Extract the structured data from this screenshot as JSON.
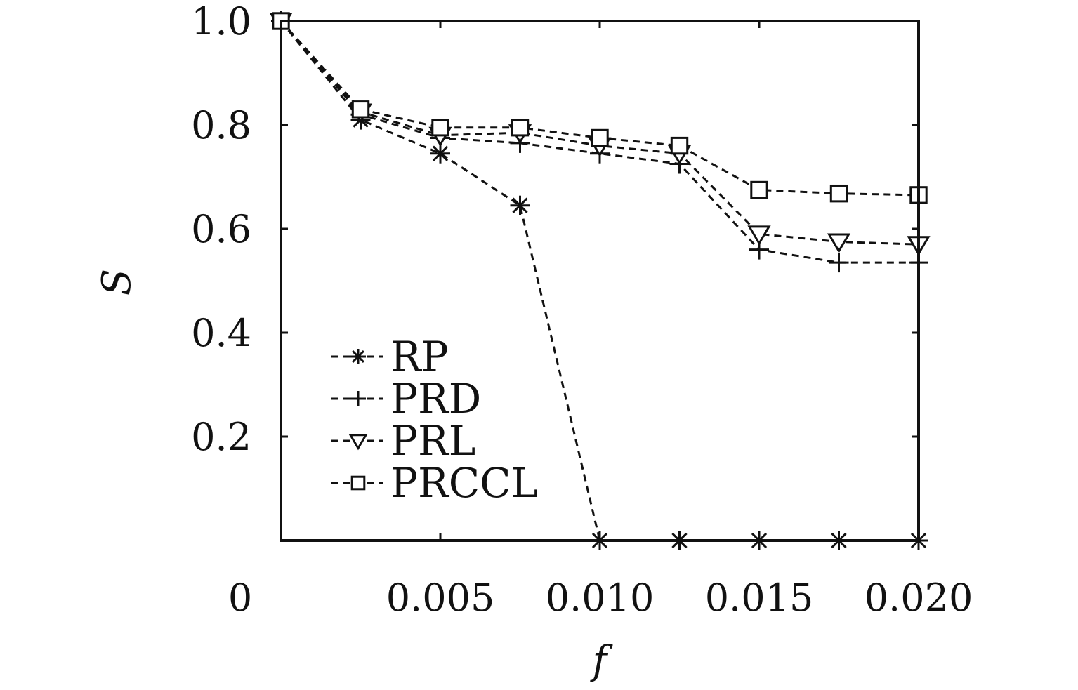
{
  "chart_data": {
    "type": "line",
    "title": "",
    "xlabel": "f",
    "ylabel": "S",
    "xlim": [
      0,
      0.02
    ],
    "ylim": [
      0,
      1.0
    ],
    "grid": false,
    "legend_position": "lower-left",
    "line_style": "dashed",
    "colors": {
      "line": "#111111",
      "axis": "#111111",
      "background": "#ffffff"
    },
    "x_ticks": [
      {
        "value": 0,
        "label": "0"
      },
      {
        "value": 0.005,
        "label": "0.005"
      },
      {
        "value": 0.01,
        "label": "0.010"
      },
      {
        "value": 0.015,
        "label": "0.015"
      },
      {
        "value": 0.02,
        "label": "0.020"
      }
    ],
    "y_ticks": [
      {
        "value": 0.2,
        "label": "0.2"
      },
      {
        "value": 0.4,
        "label": "0.4"
      },
      {
        "value": 0.6,
        "label": "0.6"
      },
      {
        "value": 0.8,
        "label": "0.8"
      },
      {
        "value": 1.0,
        "label": "1.0"
      }
    ],
    "x": [
      0,
      0.0025,
      0.005,
      0.0075,
      0.01,
      0.0125,
      0.015,
      0.0175,
      0.02
    ],
    "series": [
      {
        "name": "RP",
        "marker": "asterisk",
        "values": [
          1.0,
          0.81,
          0.745,
          0.645,
          0.0,
          0.0,
          0.0,
          0.0,
          0.0
        ]
      },
      {
        "name": "PRD",
        "marker": "plus",
        "values": [
          1.0,
          0.82,
          0.775,
          0.765,
          0.745,
          0.725,
          0.56,
          0.535,
          0.535
        ]
      },
      {
        "name": "PRL",
        "marker": "triangle-down",
        "values": [
          1.0,
          0.825,
          0.78,
          0.785,
          0.76,
          0.745,
          0.59,
          0.575,
          0.57
        ]
      },
      {
        "name": "PRCCL",
        "marker": "square",
        "values": [
          1.0,
          0.83,
          0.795,
          0.795,
          0.775,
          0.76,
          0.675,
          0.668,
          0.665
        ]
      }
    ]
  }
}
